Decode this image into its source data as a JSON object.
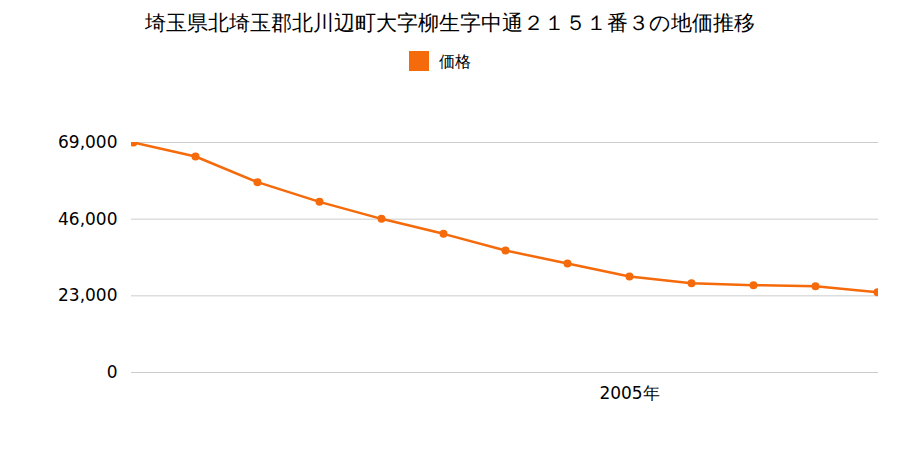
{
  "chart_data": {
    "type": "line",
    "title": "埼玉県北埼玉郡北川辺町大字柳生字中通２１５１番３の地価推移",
    "categories": [
      null,
      null,
      null,
      null,
      null,
      null,
      null,
      null,
      "2005年",
      null,
      null,
      null,
      null
    ],
    "series": [
      {
        "name": "価格",
        "color": "#f56a0a",
        "marker": "circle",
        "values": [
          69000,
          64800,
          57100,
          51200,
          46100,
          41600,
          36600,
          32700,
          28800,
          26800,
          26200,
          25900,
          24100
        ]
      }
    ],
    "ylim": [
      0,
      69000
    ],
    "yticks": [
      0,
      {
        "value": 23000,
        "label": "23,000"
      },
      {
        "value": 46000,
        "label": "46,000"
      },
      {
        "value": 69000,
        "label": "69,000"
      }
    ],
    "grid": true,
    "legend": "top"
  }
}
